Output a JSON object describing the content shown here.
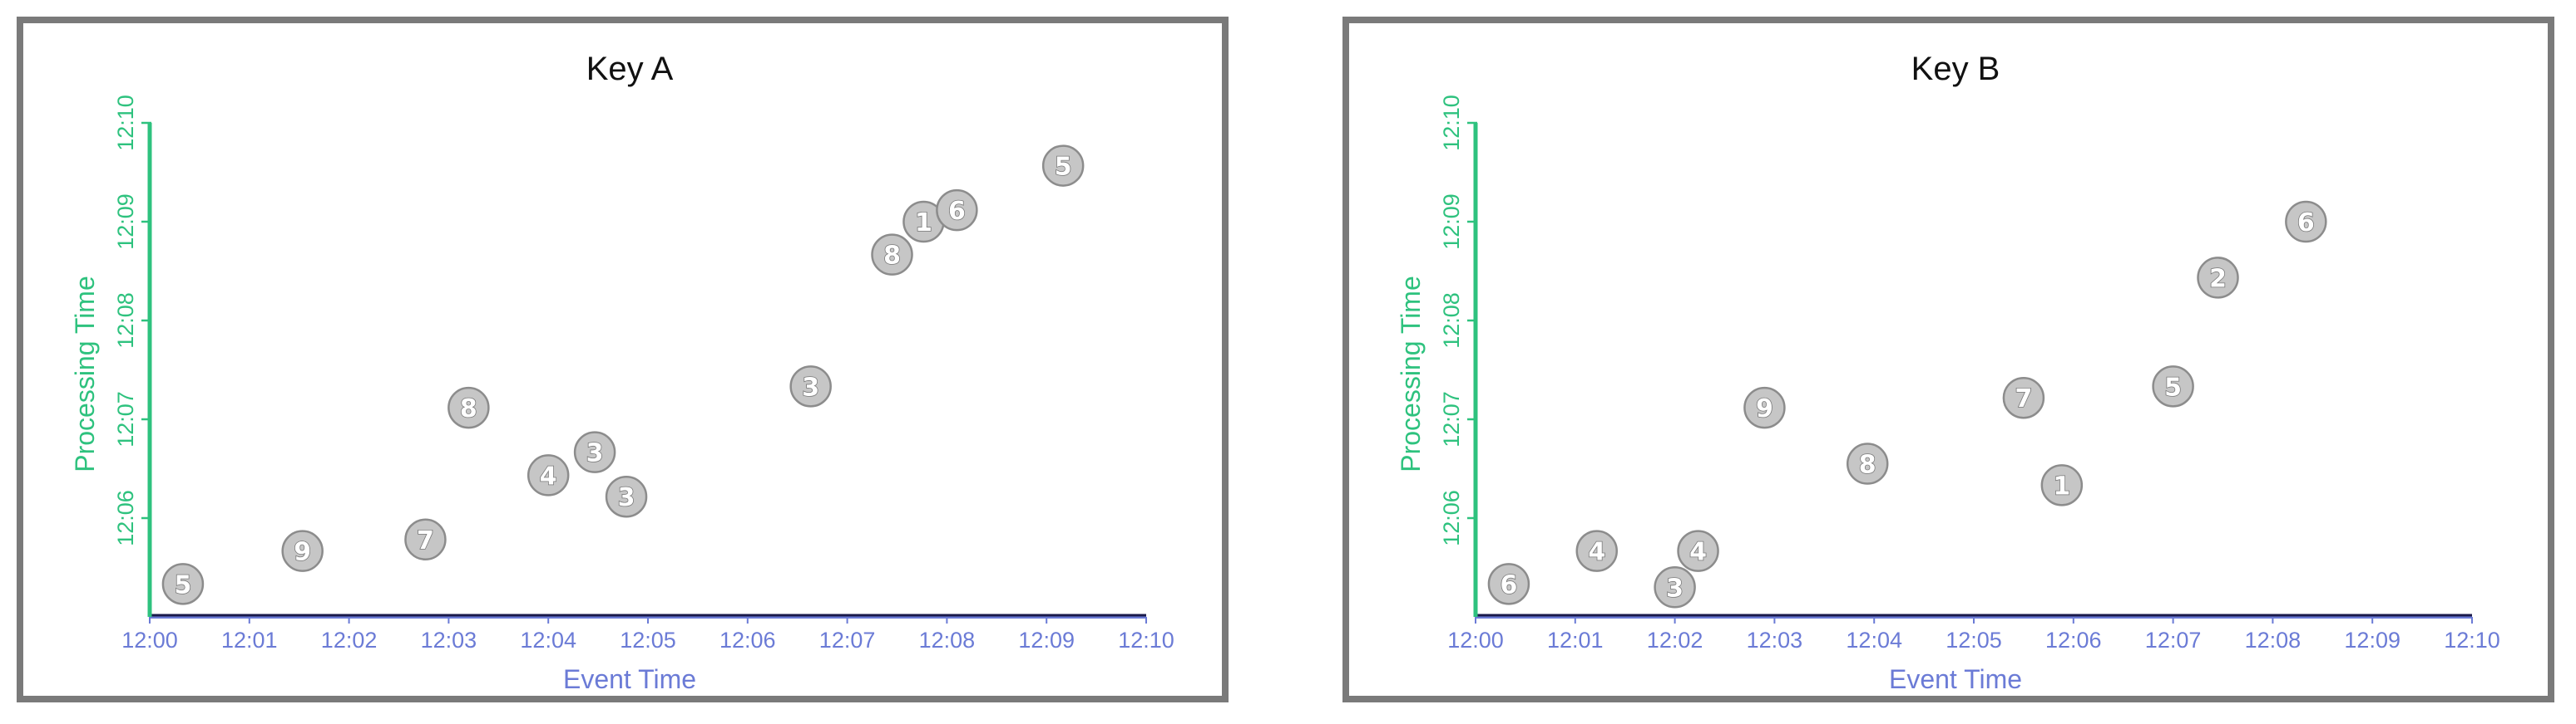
{
  "colors": {
    "x_axis": "#6b7bd6",
    "y_axis": "#2ec27e",
    "baseline": "#1a1a4a",
    "frame": "#7a7a7a"
  },
  "chart_data": [
    {
      "type": "scatter",
      "title": "Key A",
      "xlabel": "Event Time",
      "ylabel": "Processing Time",
      "x_ticks": [
        "12:00",
        "12:01",
        "12:02",
        "12:03",
        "12:04",
        "12:05",
        "12:06",
        "12:07",
        "12:08",
        "12:09",
        "12:10"
      ],
      "y_ticks": [
        "12:06",
        "12:07",
        "12:08",
        "12:09",
        "12:10"
      ],
      "xlim": [
        "12:00",
        "12:10"
      ],
      "ylim": [
        "12:05",
        "12:10"
      ],
      "points": [
        {
          "x": "12:00:20",
          "y": "12:05:20",
          "label": "5"
        },
        {
          "x": "12:01:32",
          "y": "12:05:40",
          "label": "9"
        },
        {
          "x": "12:02:46",
          "y": "12:05:47",
          "label": "7"
        },
        {
          "x": "12:03:12",
          "y": "12:07:07",
          "label": "8"
        },
        {
          "x": "12:04:00",
          "y": "12:06:26",
          "label": "4"
        },
        {
          "x": "12:04:28",
          "y": "12:06:40",
          "label": "3"
        },
        {
          "x": "12:04:47",
          "y": "12:06:13",
          "label": "3"
        },
        {
          "x": "12:06:38",
          "y": "12:07:20",
          "label": "3"
        },
        {
          "x": "12:07:27",
          "y": "12:08:40",
          "label": "8"
        },
        {
          "x": "12:07:46",
          "y": "12:09:00",
          "label": "1"
        },
        {
          "x": "12:08:06",
          "y": "12:09:07",
          "label": "6"
        },
        {
          "x": "12:09:10",
          "y": "12:09:34",
          "label": "5"
        }
      ]
    },
    {
      "type": "scatter",
      "title": "Key B",
      "xlabel": "Event Time",
      "ylabel": "Processing Time",
      "x_ticks": [
        "12:00",
        "12:01",
        "12:02",
        "12:03",
        "12:04",
        "12:05",
        "12:06",
        "12:07",
        "12:08",
        "12:09",
        "12:10"
      ],
      "y_ticks": [
        "12:06",
        "12:07",
        "12:08",
        "12:09",
        "12:10"
      ],
      "xlim": [
        "12:00",
        "12:10"
      ],
      "ylim": [
        "12:05",
        "12:10"
      ],
      "points": [
        {
          "x": "12:00:20",
          "y": "12:05:20",
          "label": "6"
        },
        {
          "x": "12:01:13",
          "y": "12:05:40",
          "label": "4"
        },
        {
          "x": "12:02:00",
          "y": "12:05:18",
          "label": "3"
        },
        {
          "x": "12:02:14",
          "y": "12:05:40",
          "label": "4"
        },
        {
          "x": "12:02:54",
          "y": "12:07:07",
          "label": "9"
        },
        {
          "x": "12:03:56",
          "y": "12:06:33",
          "label": "8"
        },
        {
          "x": "12:05:30",
          "y": "12:07:13",
          "label": "7"
        },
        {
          "x": "12:05:53",
          "y": "12:06:20",
          "label": "1"
        },
        {
          "x": "12:07:00",
          "y": "12:07:20",
          "label": "5"
        },
        {
          "x": "12:07:27",
          "y": "12:08:26",
          "label": "2"
        },
        {
          "x": "12:08:20",
          "y": "12:09:00",
          "label": "6"
        }
      ]
    }
  ]
}
